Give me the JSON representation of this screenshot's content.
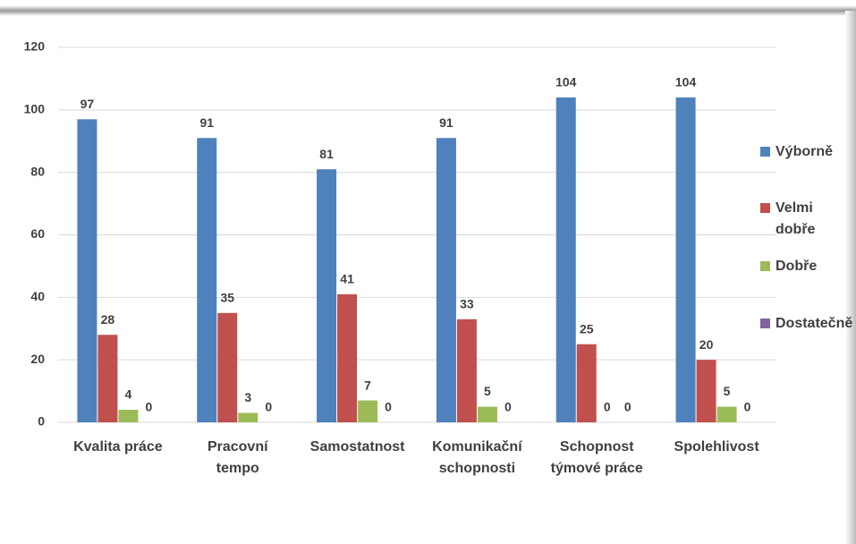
{
  "chart_data": {
    "type": "bar",
    "categories": [
      "Kvalita práce",
      "Pracovní tempo",
      "Samostatnost",
      "Komunikační schopnosti",
      "Schopnost týmové práce",
      "Spolehlivost"
    ],
    "series": [
      {
        "name": "Výborně",
        "color": "#4f81bd",
        "values": [
          97,
          91,
          81,
          91,
          104,
          104
        ]
      },
      {
        "name": "Velmi dobře",
        "color": "#c0504d",
        "values": [
          28,
          35,
          41,
          33,
          25,
          20
        ]
      },
      {
        "name": "Dobře",
        "color": "#9bbb59",
        "values": [
          4,
          3,
          7,
          5,
          0,
          5
        ]
      },
      {
        "name": "Dostatečně",
        "color": "#8064a2",
        "values": [
          0,
          0,
          0,
          0,
          0,
          0
        ]
      }
    ],
    "ylim": [
      0,
      120
    ],
    "yticks": [
      0,
      20,
      40,
      60,
      80,
      100,
      120
    ],
    "grid": true,
    "legend": "right"
  }
}
